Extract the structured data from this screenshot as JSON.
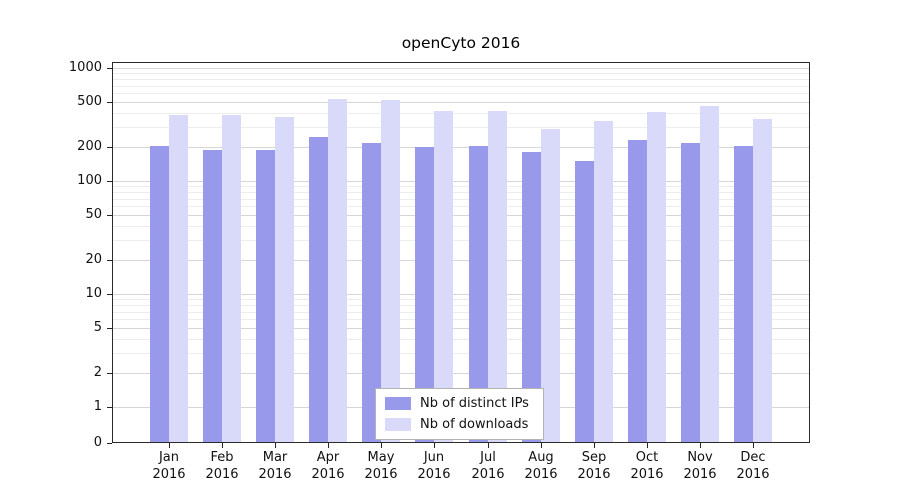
{
  "chart_data": {
    "type": "bar",
    "title": "openCyto 2016",
    "year": "2016",
    "categories": [
      "Jan",
      "Feb",
      "Mar",
      "Apr",
      "May",
      "Jun",
      "Jul",
      "Aug",
      "Sep",
      "Oct",
      "Nov",
      "Dec"
    ],
    "series": [
      {
        "name": "Nb of distinct IPs",
        "color": "#9999ec",
        "values": [
          205,
          190,
          190,
          245,
          215,
          200,
          205,
          180,
          150,
          230,
          215,
          205
        ]
      },
      {
        "name": "Nb of downloads",
        "color": "#d9d9fa",
        "values": [
          380,
          385,
          370,
          530,
          525,
          420,
          415,
          290,
          340,
          410,
          460,
          355
        ]
      }
    ],
    "yscale": "log",
    "yticks": [
      0,
      1,
      2,
      5,
      10,
      20,
      50,
      100,
      200,
      500,
      1000
    ],
    "ylim": [
      0,
      1130
    ],
    "xlabel": "",
    "ylabel": "",
    "grid": "horizontal with log minor lines",
    "legend_position": "lower center"
  },
  "colors": {
    "major_grid": "#d6d6d6",
    "minor_grid": "#ededed",
    "axis": "#262626",
    "background": "#ffffff"
  }
}
